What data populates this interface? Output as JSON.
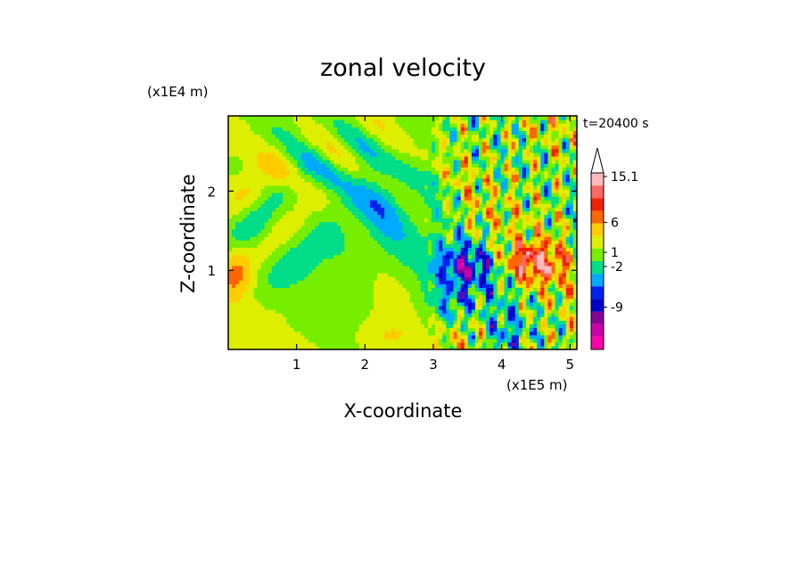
{
  "chart_data": {
    "type": "heatmap",
    "title": "zonal velocity",
    "xlabel": "X-coordinate",
    "ylabel": "Z-coordinate",
    "x_unit": "(x1E5 m)",
    "y_unit": "(x1E4 m)",
    "time_label": "t=20400 s",
    "xlim": [
      0,
      5.1
    ],
    "ylim": [
      0,
      2.95
    ],
    "xticks": [
      "1",
      "2",
      "3",
      "4",
      "5"
    ],
    "xtick_values": [
      1,
      2,
      3,
      4,
      5
    ],
    "yticks": [
      "1",
      "2"
    ],
    "ytick_values": [
      1,
      2
    ],
    "colorbar": {
      "colors": [
        "#ff00aa",
        "#cc00aa",
        "#880099",
        "#0000cc",
        "#0022ee",
        "#00aaff",
        "#00dd88",
        "#77ee00",
        "#ddee00",
        "#ffcc00",
        "#ff6600",
        "#ee2200",
        "#ff6666",
        "#ffbbbb"
      ],
      "tick_labels": [
        "15.1",
        "6",
        "1",
        "-2",
        "-9"
      ],
      "extend_max": true
    },
    "color_regions": [
      {
        "region": "left and lower-left, X < 2.7",
        "dominant": "yellow / green (about 1 to -2)"
      },
      {
        "region": "upper left, Z > 1.5",
        "dominant": "mixed orange, yellow, blue streaks"
      },
      {
        "region": "X 2.8 to 4.2, Z 0.5 to 1.3",
        "dominant": "dark blue (about -9)"
      },
      {
        "region": "X 4.0 to 5.1, Z 0.8 to 1.5",
        "dominant": "red / orange (about 6)"
      },
      {
        "region": "right, X > 3",
        "dominant": "small-scale oscillating orange/green/blue bands"
      }
    ]
  }
}
